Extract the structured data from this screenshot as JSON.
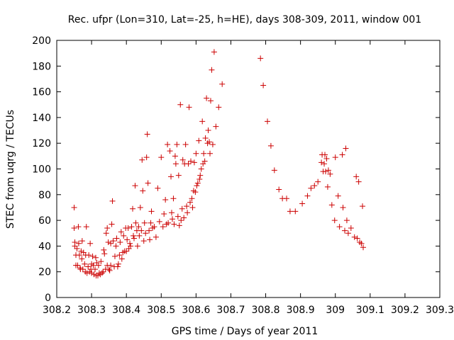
{
  "chart_data": {
    "type": "scatter",
    "title": "Rec. ufpr (Lon=310, Lat=-25, h=HE), days 308-309, 2011, window 001",
    "xlabel": "GPS time / Days of year 2011",
    "ylabel": "STEC from uqrg / TECUs",
    "xlim": [
      308.2,
      309.3
    ],
    "ylim": [
      0,
      200
    ],
    "xticks": [
      "308.2",
      "308.3",
      "308.4",
      "308.5",
      "308.6",
      "308.7",
      "308.8",
      "308.9",
      "309",
      "309.1",
      "309.2",
      "309.3"
    ],
    "yticks": [
      "0",
      "20",
      "40",
      "60",
      "80",
      "100",
      "120",
      "140",
      "160",
      "180",
      "200"
    ],
    "grid": false,
    "marker": "+",
    "color": "#cc0000",
    "points": [
      [
        308.25,
        70
      ],
      [
        308.25,
        54
      ],
      [
        308.252,
        43
      ],
      [
        308.252,
        40
      ],
      [
        308.255,
        33
      ],
      [
        308.255,
        25
      ],
      [
        308.258,
        38
      ],
      [
        308.26,
        25
      ],
      [
        308.262,
        55
      ],
      [
        308.263,
        42
      ],
      [
        308.265,
        33
      ],
      [
        308.267,
        23
      ],
      [
        308.268,
        22
      ],
      [
        308.27,
        36
      ],
      [
        308.272,
        30
      ],
      [
        308.273,
        44
      ],
      [
        308.275,
        22
      ],
      [
        308.277,
        35
      ],
      [
        308.28,
        26
      ],
      [
        308.282,
        20
      ],
      [
        308.283,
        33
      ],
      [
        308.285,
        55
      ],
      [
        308.287,
        19
      ],
      [
        308.29,
        24
      ],
      [
        308.292,
        33
      ],
      [
        308.294,
        20
      ],
      [
        308.296,
        42
      ],
      [
        308.298,
        22
      ],
      [
        308.3,
        26
      ],
      [
        308.3,
        19
      ],
      [
        308.303,
        32
      ],
      [
        308.305,
        25
      ],
      [
        308.307,
        18
      ],
      [
        308.31,
        22
      ],
      [
        308.312,
        31
      ],
      [
        308.313,
        17
      ],
      [
        308.315,
        27
      ],
      [
        308.318,
        17
      ],
      [
        308.32,
        25
      ],
      [
        308.322,
        19
      ],
      [
        308.325,
        18
      ],
      [
        308.327,
        28
      ],
      [
        308.33,
        19
      ],
      [
        308.333,
        20
      ],
      [
        308.335,
        37
      ],
      [
        308.337,
        34
      ],
      [
        308.34,
        22
      ],
      [
        308.342,
        50
      ],
      [
        308.345,
        54
      ],
      [
        308.345,
        25
      ],
      [
        308.348,
        43
      ],
      [
        308.35,
        22
      ],
      [
        308.352,
        21
      ],
      [
        308.355,
        42
      ],
      [
        308.355,
        25
      ],
      [
        308.358,
        57
      ],
      [
        308.36,
        75
      ],
      [
        308.362,
        44
      ],
      [
        308.365,
        24
      ],
      [
        308.367,
        32
      ],
      [
        308.37,
        40
      ],
      [
        308.372,
        46
      ],
      [
        308.375,
        24
      ],
      [
        308.377,
        26
      ],
      [
        308.38,
        33
      ],
      [
        308.382,
        43
      ],
      [
        308.385,
        51
      ],
      [
        308.387,
        30
      ],
      [
        308.39,
        35
      ],
      [
        308.392,
        48
      ],
      [
        308.395,
        36
      ],
      [
        308.398,
        54
      ],
      [
        308.4,
        36
      ],
      [
        308.402,
        45
      ],
      [
        308.405,
        54
      ],
      [
        308.407,
        38
      ],
      [
        308.41,
        42
      ],
      [
        308.412,
        40
      ],
      [
        308.415,
        55
      ],
      [
        308.418,
        69
      ],
      [
        308.42,
        48
      ],
      [
        308.422,
        46
      ],
      [
        308.425,
        87
      ],
      [
        308.427,
        58
      ],
      [
        308.43,
        52
      ],
      [
        308.432,
        40
      ],
      [
        308.435,
        55
      ],
      [
        308.437,
        48
      ],
      [
        308.44,
        70
      ],
      [
        308.443,
        52
      ],
      [
        308.445,
        107
      ],
      [
        308.447,
        83
      ],
      [
        308.45,
        44
      ],
      [
        308.452,
        58
      ],
      [
        308.455,
        50
      ],
      [
        308.458,
        109
      ],
      [
        308.46,
        127
      ],
      [
        308.462,
        89
      ],
      [
        308.465,
        52
      ],
      [
        308.467,
        45
      ],
      [
        308.47,
        58
      ],
      [
        308.472,
        67
      ],
      [
        308.475,
        54
      ],
      [
        308.48,
        55
      ],
      [
        308.485,
        47
      ],
      [
        308.49,
        85
      ],
      [
        308.495,
        59
      ],
      [
        308.5,
        109
      ],
      [
        308.505,
        55
      ],
      [
        308.508,
        65
      ],
      [
        308.512,
        76
      ],
      [
        308.515,
        57
      ],
      [
        308.518,
        119
      ],
      [
        308.52,
        58
      ],
      [
        308.525,
        114
      ],
      [
        308.528,
        94
      ],
      [
        308.53,
        66
      ],
      [
        308.532,
        61
      ],
      [
        308.535,
        77
      ],
      [
        308.537,
        57
      ],
      [
        308.54,
        110
      ],
      [
        308.542,
        104
      ],
      [
        308.545,
        119
      ],
      [
        308.548,
        63
      ],
      [
        308.55,
        95
      ],
      [
        308.552,
        56
      ],
      [
        308.555,
        150
      ],
      [
        308.557,
        60
      ],
      [
        308.56,
        69
      ],
      [
        308.562,
        107
      ],
      [
        308.565,
        62
      ],
      [
        308.567,
        104
      ],
      [
        308.57,
        119
      ],
      [
        308.573,
        71
      ],
      [
        308.575,
        66
      ],
      [
        308.578,
        104
      ],
      [
        308.58,
        148
      ],
      [
        308.583,
        74
      ],
      [
        308.585,
        106
      ],
      [
        308.588,
        77
      ],
      [
        308.59,
        70
      ],
      [
        308.593,
        83
      ],
      [
        308.595,
        105
      ],
      [
        308.598,
        82
      ],
      [
        308.6,
        112
      ],
      [
        308.602,
        87
      ],
      [
        308.605,
        89
      ],
      [
        308.608,
        122
      ],
      [
        308.61,
        92
      ],
      [
        308.612,
        95
      ],
      [
        308.615,
        100
      ],
      [
        308.618,
        137
      ],
      [
        308.62,
        104
      ],
      [
        308.622,
        112
      ],
      [
        308.625,
        106
      ],
      [
        308.627,
        124
      ],
      [
        308.63,
        155
      ],
      [
        308.633,
        120
      ],
      [
        308.635,
        130
      ],
      [
        308.638,
        121
      ],
      [
        308.64,
        112
      ],
      [
        308.642,
        153
      ],
      [
        308.645,
        177
      ],
      [
        308.648,
        119
      ],
      [
        308.652,
        191
      ],
      [
        308.657,
        133
      ],
      [
        308.665,
        148
      ],
      [
        308.675,
        166
      ],
      [
        308.785,
        186
      ],
      [
        308.793,
        165
      ],
      [
        308.805,
        137
      ],
      [
        308.815,
        118
      ],
      [
        308.825,
        99
      ],
      [
        308.838,
        84
      ],
      [
        308.848,
        77
      ],
      [
        308.86,
        77
      ],
      [
        308.87,
        67
      ],
      [
        308.885,
        67
      ],
      [
        308.905,
        73
      ],
      [
        308.92,
        79
      ],
      [
        308.93,
        85
      ],
      [
        308.94,
        87
      ],
      [
        308.95,
        90
      ],
      [
        308.96,
        105
      ],
      [
        308.962,
        111
      ],
      [
        308.965,
        98
      ],
      [
        308.968,
        104
      ],
      [
        308.97,
        111
      ],
      [
        308.972,
        98
      ],
      [
        308.975,
        108
      ],
      [
        308.978,
        86
      ],
      [
        308.98,
        99
      ],
      [
        308.985,
        96
      ],
      [
        308.99,
        72
      ],
      [
        308.998,
        60
      ],
      [
        309.0,
        109
      ],
      [
        309.008,
        79
      ],
      [
        309.012,
        55
      ],
      [
        309.02,
        111
      ],
      [
        309.022,
        70
      ],
      [
        309.027,
        52
      ],
      [
        309.03,
        116
      ],
      [
        309.033,
        60
      ],
      [
        309.037,
        50
      ],
      [
        309.045,
        54
      ],
      [
        309.055,
        47
      ],
      [
        309.06,
        94
      ],
      [
        309.063,
        46
      ],
      [
        309.067,
        90
      ],
      [
        309.07,
        43
      ],
      [
        309.075,
        42
      ],
      [
        309.078,
        71
      ],
      [
        309.08,
        39
      ]
    ]
  }
}
